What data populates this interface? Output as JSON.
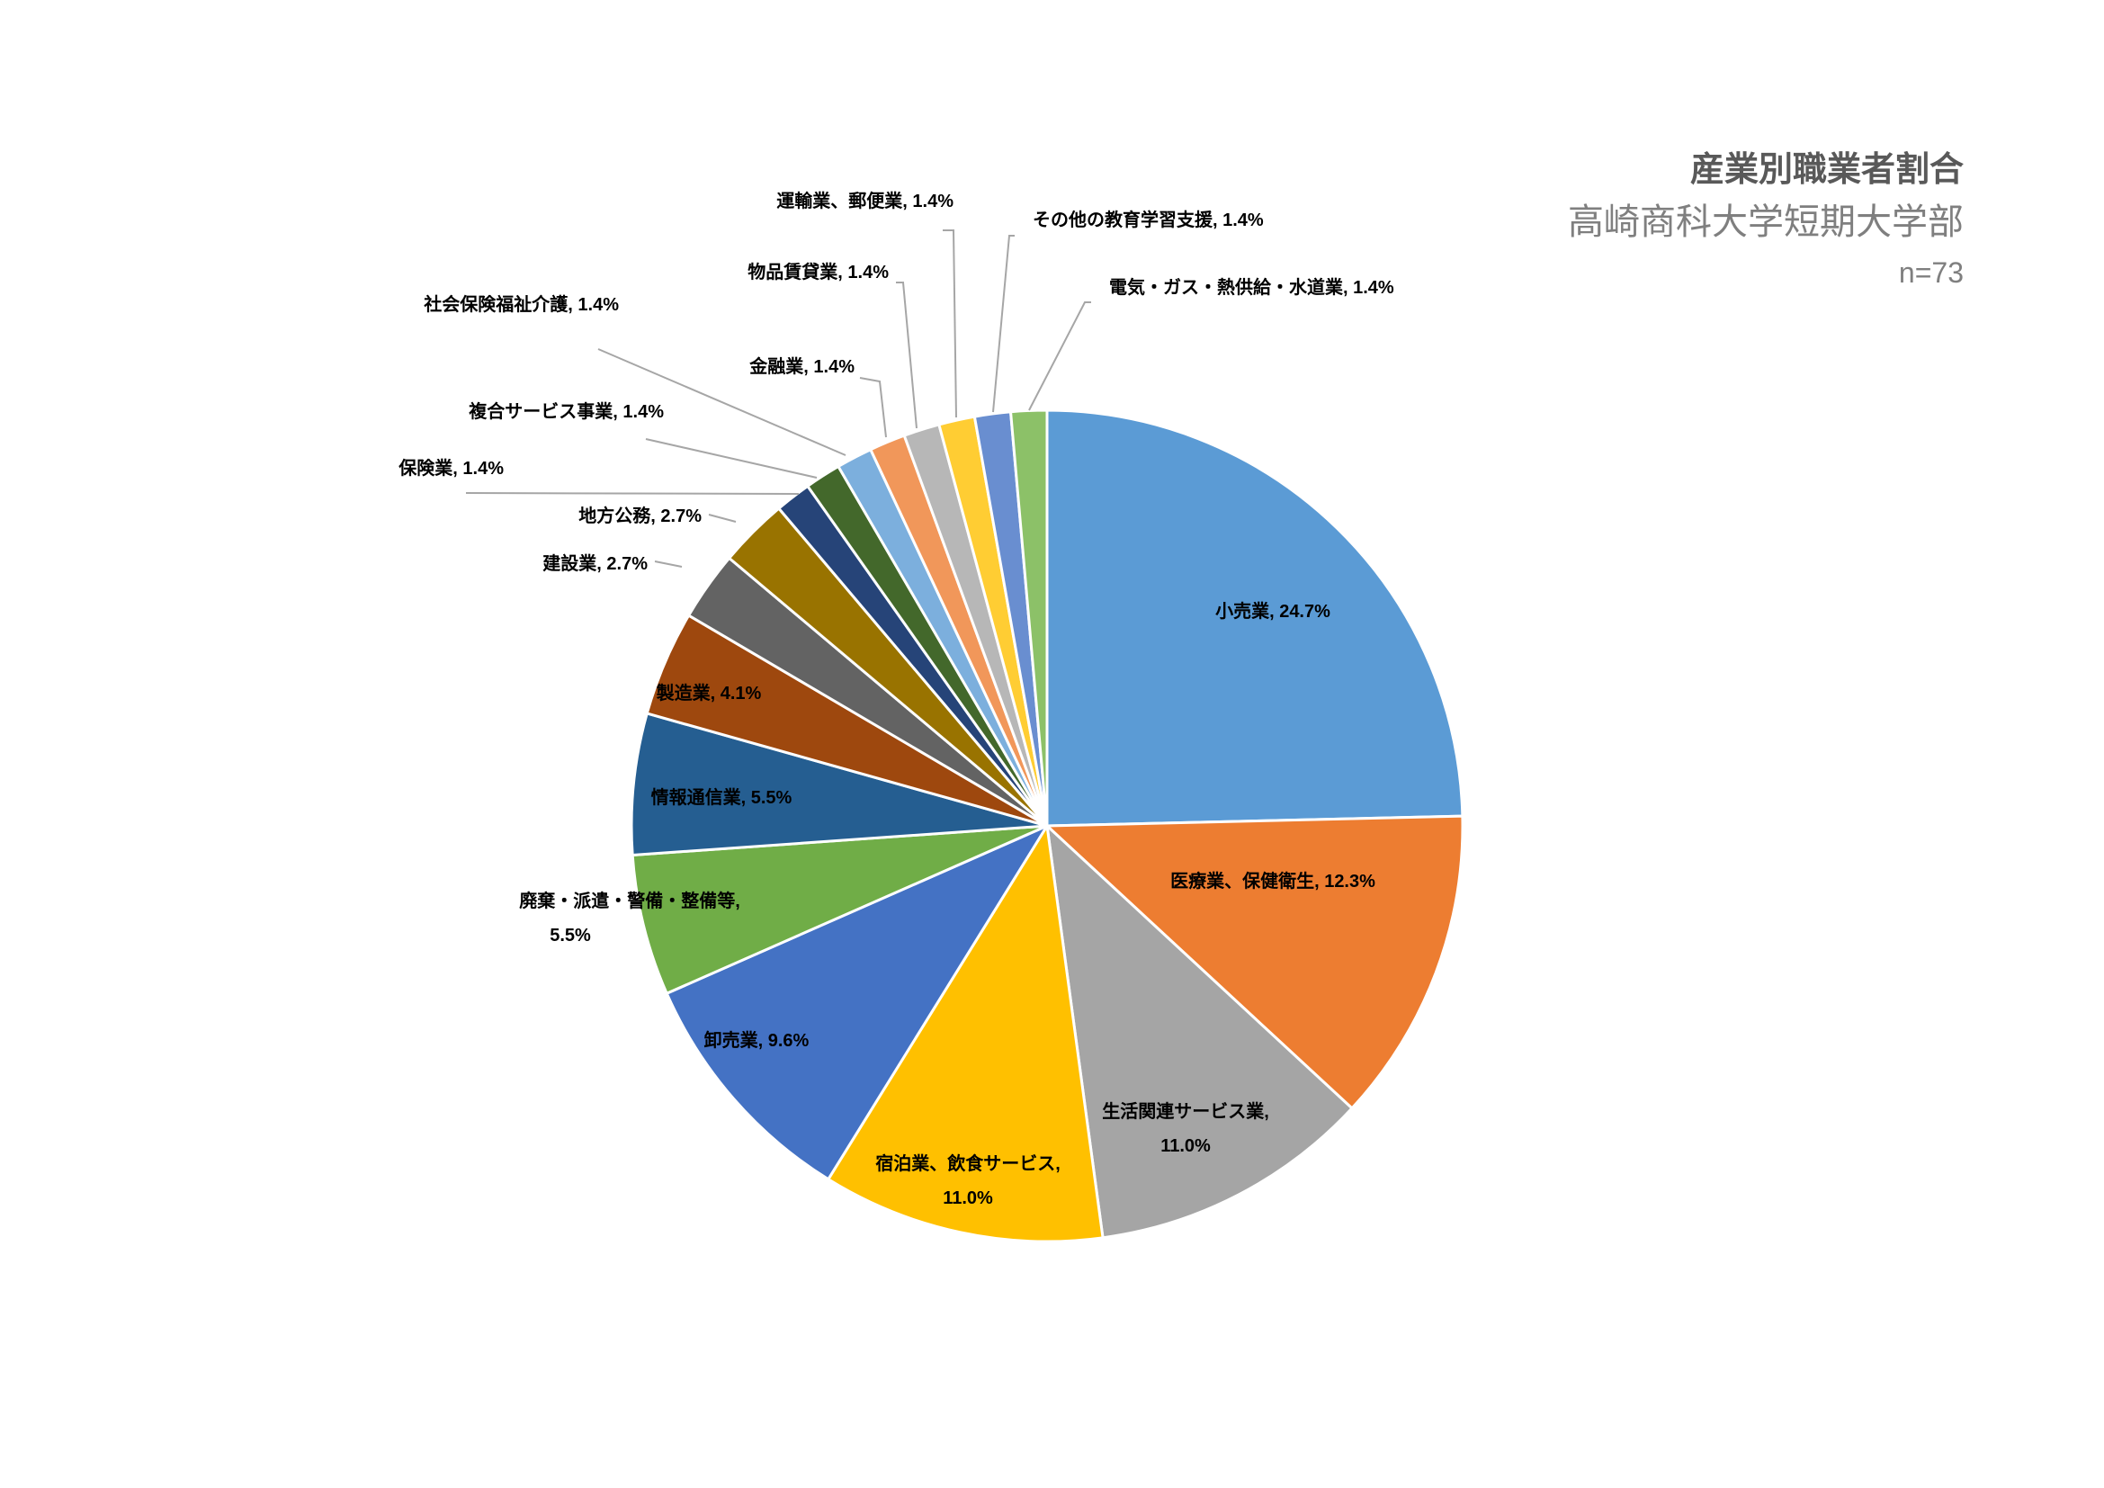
{
  "chart_title": "産業別職業者割合",
  "subtitle": "高崎商科大学短期大学部",
  "sample_note": "n=73",
  "chart_data": {
    "type": "pie",
    "title": "産業別職業者割合",
    "start_angle_deg": 0,
    "direction": "clockwise",
    "slices": [
      {
        "label": "小売業",
        "value": 24.7,
        "display": "小売業, 24.7%",
        "color": "#5b9bd5"
      },
      {
        "label": "医療業、保健衛生",
        "value": 12.3,
        "display": "医療業、保健衛生, 12.3%",
        "color": "#ed7d31"
      },
      {
        "label": "生活関連サービス業",
        "value": 11.0,
        "display": "生活関連サービス業, 11.0%",
        "color": "#a5a5a5"
      },
      {
        "label": "宿泊業、飲食サービス",
        "value": 11.0,
        "display": "宿泊業、飲食サービス, 11.0%",
        "color": "#ffc000"
      },
      {
        "label": "卸売業",
        "value": 9.6,
        "display": "卸売業, 9.6%",
        "color": "#4472c4"
      },
      {
        "label": "廃棄・派遣・警備・整備等",
        "value": 5.5,
        "display": "廃棄・派遣・警備・整備等, 5.5%",
        "color": "#70ad47"
      },
      {
        "label": "情報通信業",
        "value": 5.5,
        "display": "情報通信業, 5.5%",
        "color": "#255e91"
      },
      {
        "label": "製造業",
        "value": 4.1,
        "display": "製造業, 4.1%",
        "color": "#9e480e"
      },
      {
        "label": "建設業",
        "value": 2.7,
        "display": "建設業, 2.7%",
        "color": "#636363"
      },
      {
        "label": "地方公務",
        "value": 2.7,
        "display": "地方公務, 2.7%",
        "color": "#997300"
      },
      {
        "label": "保険業",
        "value": 1.4,
        "display": "保険業, 1.4%",
        "color": "#264478"
      },
      {
        "label": "複合サービス事業",
        "value": 1.4,
        "display": "複合サービス事業, 1.4%",
        "color": "#43682b"
      },
      {
        "label": "社会保険福祉介護",
        "value": 1.4,
        "display": "社会保険福祉介護, 1.4%",
        "color": "#7cafdd"
      },
      {
        "label": "金融業",
        "value": 1.4,
        "display": "金融業, 1.4%",
        "color": "#f1975a"
      },
      {
        "label": "物品賃貸業",
        "value": 1.4,
        "display": "物品賃貸業, 1.4%",
        "color": "#b7b7b7"
      },
      {
        "label": "運輸業、郵便業",
        "value": 1.4,
        "display": "運輸業、郵便業, 1.4%",
        "color": "#ffcd33"
      },
      {
        "label": "その他の教育学習支援",
        "value": 1.4,
        "display": "その他の教育学習支援, 1.4%",
        "color": "#698ed0"
      },
      {
        "label": "電気・ガス・熱供給・水道業",
        "value": 1.4,
        "display": "電気・ガス・熱供給・水道業, 1.4%",
        "color": "#8cc168"
      }
    ]
  }
}
